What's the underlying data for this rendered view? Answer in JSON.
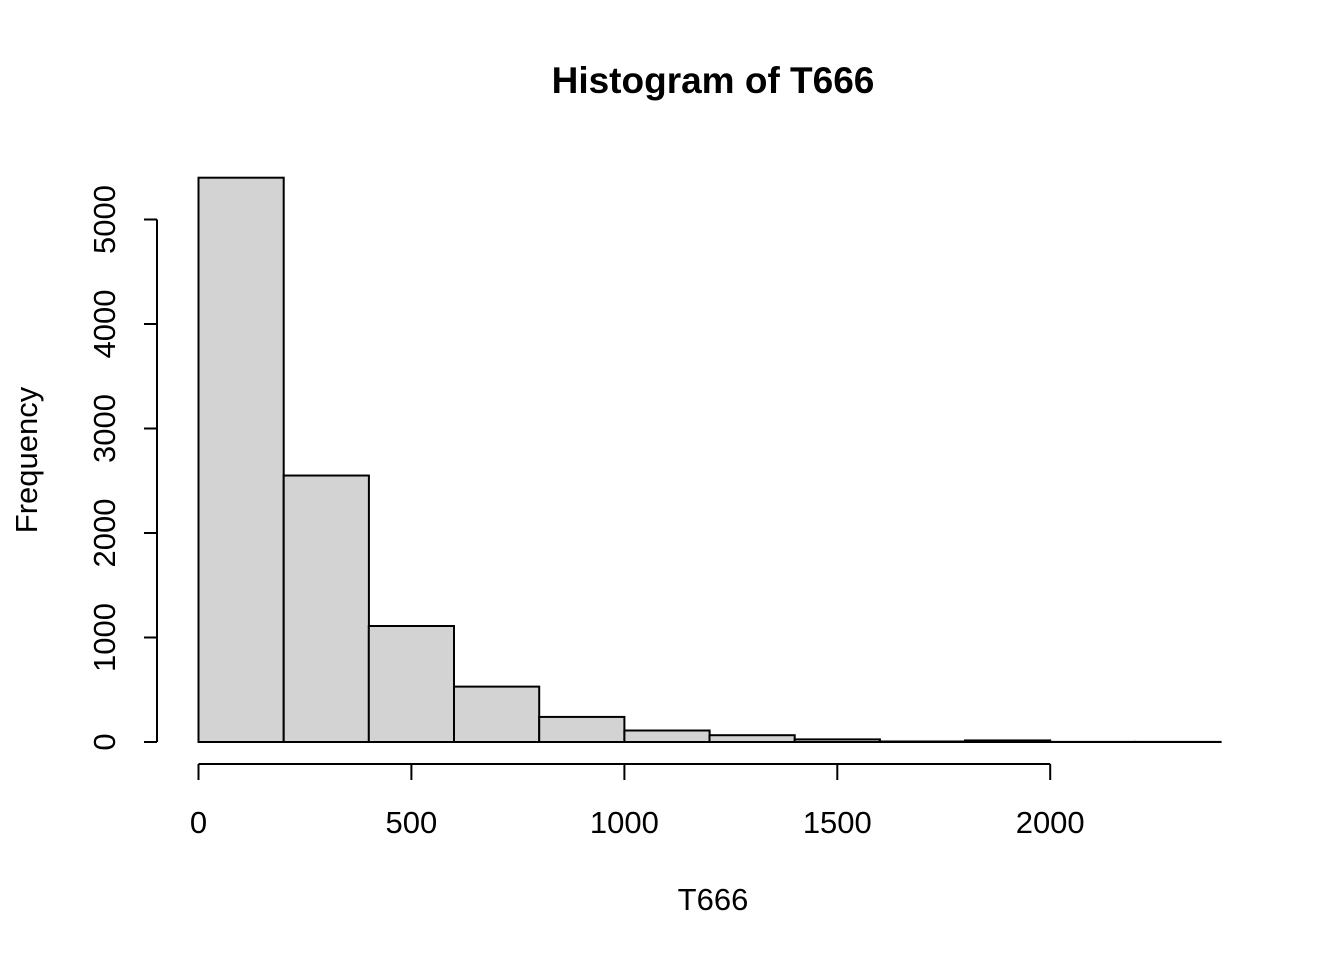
{
  "chart_data": {
    "type": "bar",
    "subtype": "histogram",
    "title": "Histogram of T666",
    "xlabel": "T666",
    "ylabel": "Frequency",
    "bin_start": 0,
    "bin_width": 200,
    "bin_edges": [
      0,
      200,
      400,
      600,
      800,
      1000,
      1200,
      1400,
      1600,
      1800,
      2000,
      2200,
      2400
    ],
    "counts": [
      5400,
      2550,
      1110,
      530,
      240,
      110,
      65,
      25,
      5,
      15,
      1,
      1
    ],
    "x_ticks": [
      0,
      500,
      1000,
      1500,
      2000
    ],
    "x_tick_labels": [
      "0",
      "500",
      "1000",
      "1500",
      "2000"
    ],
    "y_ticks": [
      0,
      1000,
      2000,
      3000,
      4000,
      5000
    ],
    "y_tick_labels": [
      "0",
      "1000",
      "2000",
      "3000",
      "4000",
      "5000"
    ],
    "xlim": [
      0,
      2400
    ],
    "ylim": [
      0,
      5000
    ],
    "grid": false,
    "legend": null,
    "colors": {
      "bar_fill": "#d3d3d3",
      "bar_stroke": "#000000",
      "axis": "#000000",
      "text": "#000000",
      "background": "#ffffff"
    }
  }
}
